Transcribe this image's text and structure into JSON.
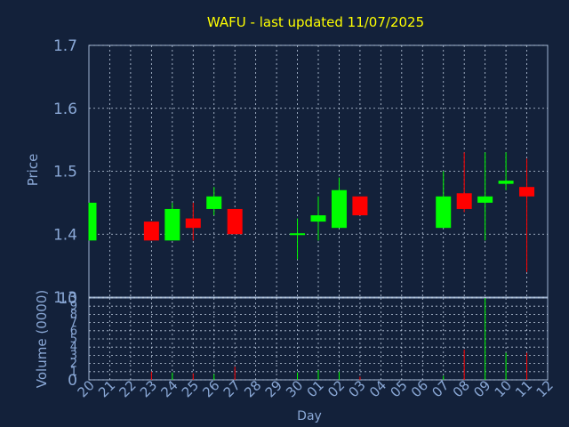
{
  "chart_data": [
    {
      "type": "candlestick",
      "title": "WAFU - last updated 11/07/2025",
      "ylabel": "Price",
      "ylim": [
        1.3,
        1.7
      ],
      "yticks": [
        "1.3",
        "1.4",
        "1.5",
        "1.6",
        "1.7"
      ],
      "grid": true,
      "x": [
        "20",
        "21",
        "22",
        "23",
        "24",
        "25",
        "26",
        "27",
        "28",
        "29",
        "30",
        "01",
        "02",
        "03",
        "04",
        "05",
        "06",
        "07",
        "08",
        "09",
        "10",
        "11",
        "12"
      ],
      "candles": [
        {
          "day": "20",
          "open": 1.39,
          "close": 1.45,
          "high": 1.45,
          "low": 1.39
        },
        {
          "day": "23",
          "open": 1.42,
          "close": 1.39,
          "high": 1.42,
          "low": 1.39
        },
        {
          "day": "24",
          "open": 1.39,
          "close": 1.44,
          "high": 1.45,
          "low": 1.39
        },
        {
          "day": "25",
          "open": 1.425,
          "close": 1.41,
          "high": 1.45,
          "low": 1.39
        },
        {
          "day": "26",
          "open": 1.44,
          "close": 1.46,
          "high": 1.475,
          "low": 1.43
        },
        {
          "day": "27",
          "open": 1.44,
          "close": 1.4,
          "high": 1.44,
          "low": 1.4
        },
        {
          "day": "30",
          "open": 1.4,
          "close": 1.4,
          "high": 1.425,
          "low": 1.36
        },
        {
          "day": "01",
          "open": 1.42,
          "close": 1.43,
          "high": 1.46,
          "low": 1.39
        },
        {
          "day": "02",
          "open": 1.41,
          "close": 1.47,
          "high": 1.49,
          "low": 1.41
        },
        {
          "day": "03",
          "open": 1.46,
          "close": 1.43,
          "high": 1.46,
          "low": 1.43
        },
        {
          "day": "07",
          "open": 1.41,
          "close": 1.46,
          "high": 1.5,
          "low": 1.41
        },
        {
          "day": "08",
          "open": 1.465,
          "close": 1.44,
          "high": 1.53,
          "low": 1.435
        },
        {
          "day": "09",
          "open": 1.45,
          "close": 1.46,
          "high": 1.53,
          "low": 1.39
        },
        {
          "day": "10",
          "open": 1.48,
          "close": 1.485,
          "high": 1.53,
          "low": 1.47
        },
        {
          "day": "11",
          "open": 1.475,
          "close": 1.46,
          "high": 1.52,
          "low": 1.34
        }
      ]
    },
    {
      "type": "bar",
      "xlabel": "Day",
      "ylabel": "Volume (0000)",
      "ylim": [
        0,
        10
      ],
      "yticks": [
        "0",
        "1",
        "2",
        "3",
        "4",
        "5",
        "6",
        "7",
        "8",
        "9",
        "10"
      ],
      "grid": true,
      "x": [
        "20",
        "21",
        "22",
        "23",
        "24",
        "25",
        "26",
        "27",
        "28",
        "29",
        "30",
        "01",
        "02",
        "03",
        "04",
        "05",
        "06",
        "07",
        "08",
        "09",
        "10",
        "11",
        "12"
      ],
      "bars": [
        {
          "day": "23",
          "value": 1.0,
          "direction": "down"
        },
        {
          "day": "24",
          "value": 0.9,
          "direction": "up"
        },
        {
          "day": "25",
          "value": 0.8,
          "direction": "down"
        },
        {
          "day": "26",
          "value": 0.7,
          "direction": "up"
        },
        {
          "day": "27",
          "value": 1.6,
          "direction": "down"
        },
        {
          "day": "30",
          "value": 0.9,
          "direction": "up"
        },
        {
          "day": "01",
          "value": 1.2,
          "direction": "up"
        },
        {
          "day": "02",
          "value": 1.0,
          "direction": "up"
        },
        {
          "day": "03",
          "value": 0.4,
          "direction": "down"
        },
        {
          "day": "07",
          "value": 0.5,
          "direction": "up"
        },
        {
          "day": "08",
          "value": 3.7,
          "direction": "down"
        },
        {
          "day": "09",
          "value": 10.0,
          "direction": "up"
        },
        {
          "day": "10",
          "value": 3.3,
          "direction": "up"
        },
        {
          "day": "11",
          "value": 3.3,
          "direction": "down"
        }
      ]
    }
  ],
  "colors": {
    "background": "#13213a",
    "title": "#ffff00",
    "axis_text": "#8aa8d6",
    "frame": "#9fb4d3",
    "grid": "#bfcde0",
    "up": "#00ff00",
    "down": "#ff0000"
  }
}
